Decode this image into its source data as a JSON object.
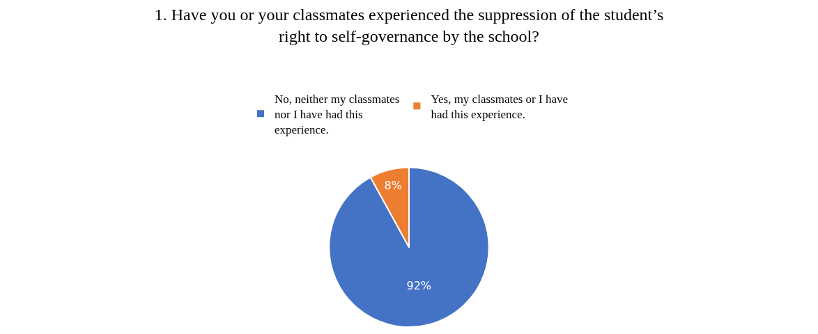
{
  "chart_data": {
    "type": "pie",
    "title": "1. Have you or your classmates experienced the suppression of the student’s right to self-governance by the school?",
    "categories": [
      "No, neither my classmates nor I have had this experience.",
      "Yes, my classmates or I have had this experience."
    ],
    "values": [
      92,
      8
    ],
    "colors": [
      "#4472c4",
      "#ed7d31"
    ],
    "value_labels": [
      "92%",
      "8%"
    ],
    "legend": "top"
  }
}
